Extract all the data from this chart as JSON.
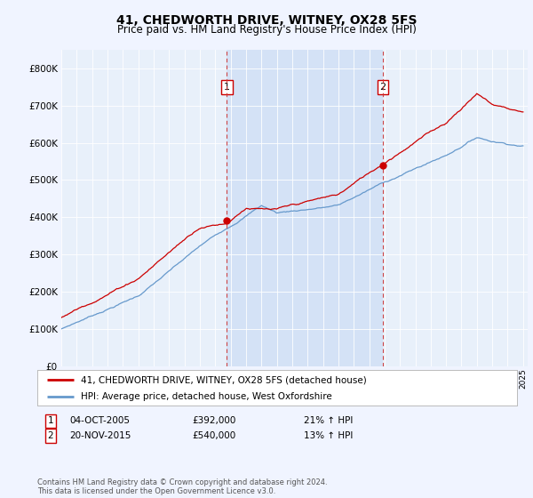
{
  "title": "41, CHEDWORTH DRIVE, WITNEY, OX28 5FS",
  "subtitle": "Price paid vs. HM Land Registry's House Price Index (HPI)",
  "ytick_values": [
    0,
    100000,
    200000,
    300000,
    400000,
    500000,
    600000,
    700000,
    800000
  ],
  "ylim": [
    0,
    850000
  ],
  "xlim_start": 1995.0,
  "xlim_end": 2025.3,
  "bg_color": "#f0f4ff",
  "plot_bg": "#e8f0fa",
  "shade_color": "#ccddf5",
  "red_color": "#cc0000",
  "blue_color": "#6699cc",
  "marker1_x": 2005.75,
  "marker1_y": 392000,
  "marker2_x": 2015.9,
  "marker2_y": 540000,
  "vline1_x": 2005.75,
  "vline2_x": 2015.9,
  "legend_label_red": "41, CHEDWORTH DRIVE, WITNEY, OX28 5FS (detached house)",
  "legend_label_blue": "HPI: Average price, detached house, West Oxfordshire",
  "table_row1": [
    "1",
    "04-OCT-2005",
    "£392,000",
    "21% ↑ HPI"
  ],
  "table_row2": [
    "2",
    "20-NOV-2015",
    "£540,000",
    "13% ↑ HPI"
  ],
  "footer": "Contains HM Land Registry data © Crown copyright and database right 2024.\nThis data is licensed under the Open Government Licence v3.0."
}
